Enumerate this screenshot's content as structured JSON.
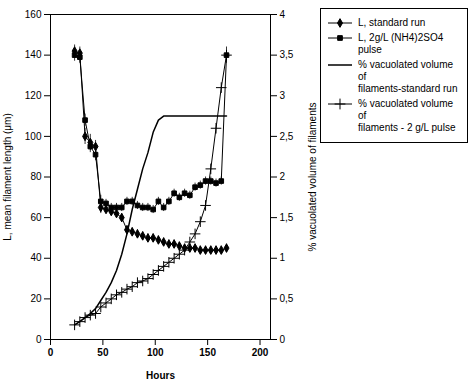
{
  "chart_data": {
    "type": "line",
    "xlabel": "Hours",
    "ylabel": "L, mean filament length (μm)",
    "y2label": "% vacuolated volume of filaments",
    "xlim": [
      0,
      210
    ],
    "xticks": [
      0,
      50,
      100,
      150,
      200
    ],
    "ylim": [
      0,
      160
    ],
    "yticks": [
      0,
      20,
      40,
      60,
      80,
      100,
      120,
      140,
      160
    ],
    "y2lim": [
      0,
      4
    ],
    "y2ticks": [
      0,
      {
        "value": 0.5,
        "label": "0,5"
      },
      1,
      {
        "value": 1.5,
        "label": "1,5"
      },
      2,
      {
        "value": 2.5,
        "label": "2,5"
      },
      3,
      {
        "value": 3.5,
        "label": "3,5"
      },
      4
    ],
    "legend": "upper right",
    "x": [
      23,
      28,
      33,
      38,
      43,
      48,
      53,
      58,
      63,
      68,
      73,
      78,
      83,
      88,
      93,
      98,
      103,
      108,
      113,
      118,
      123,
      128,
      133,
      138,
      143,
      148,
      153,
      158,
      163,
      168
    ],
    "series": [
      {
        "name": "L, standard run",
        "color": "#000000",
        "marker": "diamond",
        "values": [
          142,
          141,
          100,
          97,
          95,
          65,
          64,
          63,
          62,
          60,
          54,
          53,
          52,
          51,
          50,
          50,
          49,
          48,
          47,
          47,
          46,
          45,
          45,
          45,
          44,
          44,
          44,
          44,
          44,
          45
        ],
        "error": [
          3,
          3,
          4,
          4,
          3,
          3,
          2,
          2,
          2,
          2,
          2,
          2,
          2,
          2,
          2,
          2,
          2,
          2,
          2,
          2,
          2,
          2,
          2,
          2,
          2,
          2,
          2,
          2,
          2,
          2
        ]
      },
      {
        "name": "L, 2g/L (NH4)2SO4 pulse",
        "color": "#000000",
        "marker": "square",
        "values": [
          140,
          139,
          108,
          95,
          91,
          68,
          67,
          65,
          65,
          65,
          68,
          68,
          66,
          65,
          65,
          64,
          68,
          65,
          68,
          72,
          70,
          72,
          71,
          75,
          76,
          78,
          78,
          77,
          78,
          140
        ],
        "error": [
          3,
          3,
          3,
          3,
          3,
          3,
          2,
          2,
          2,
          2,
          2,
          2,
          2,
          2,
          2,
          2,
          2,
          2,
          2,
          2,
          2,
          2,
          2,
          2,
          2,
          2,
          2,
          2,
          2,
          4
        ]
      },
      {
        "name": "% vacuolated volume of\nfilaments-standard run",
        "color": "#000000",
        "axis": "y2",
        "values": [
          0.18,
          0.22,
          0.27,
          0.32,
          0.38,
          0.48,
          0.58,
          0.7,
          0.85,
          1.05,
          1.3,
          1.6,
          1.85,
          2.1,
          2.3,
          2.55,
          2.7,
          2.75,
          2.75,
          2.75,
          2.75,
          2.75,
          2.75,
          2.75,
          2.75,
          2.75,
          2.75,
          2.75,
          2.75,
          2.75
        ]
      },
      {
        "name": "% vacuolated volume of\nfilaments - 2 g/L pulse",
        "color": "#000000",
        "axis": "y2",
        "marker": "plus",
        "values": [
          0.18,
          0.22,
          0.27,
          0.3,
          0.32,
          0.4,
          0.45,
          0.5,
          0.55,
          0.58,
          0.62,
          0.65,
          0.7,
          0.72,
          0.75,
          0.8,
          0.85,
          0.9,
          0.95,
          1.0,
          1.05,
          1.1,
          1.2,
          1.3,
          1.45,
          1.65,
          2.1,
          2.6,
          3.1,
          3.5
        ]
      }
    ]
  }
}
